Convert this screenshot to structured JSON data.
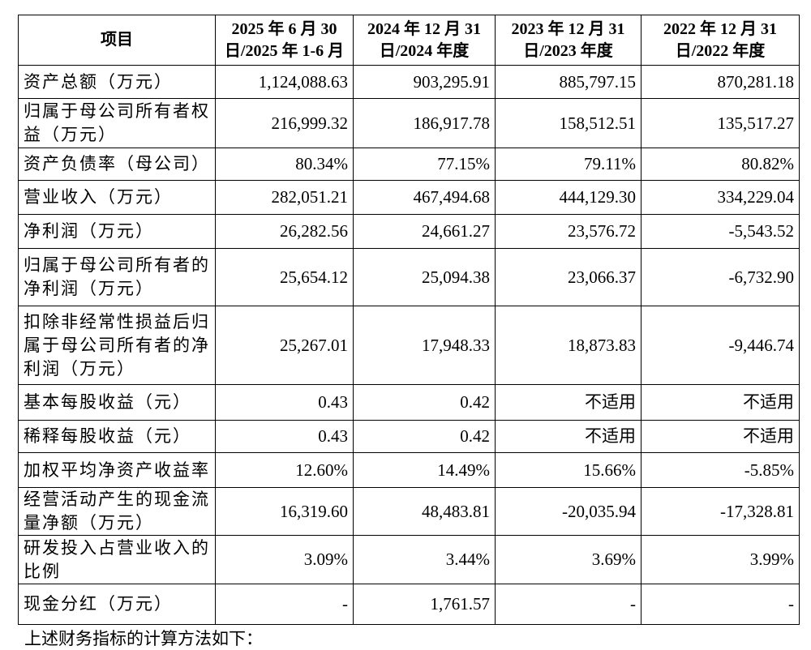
{
  "table": {
    "header": [
      [
        "项目"
      ],
      [
        "2025 年 6 月 30",
        "日/2025 年 1-6 月"
      ],
      [
        "2024 年 12 月 31",
        "日/2024 年度"
      ],
      [
        "2023 年 12 月 31",
        "日/2023 年度"
      ],
      [
        "2022 年 12 月 31",
        "日/2022 年度"
      ]
    ],
    "rows": [
      [
        "资产总额（万元）",
        "1,124,088.63",
        "903,295.91",
        "885,797.15",
        "870,281.18"
      ],
      [
        "归属于母公司所有者权益（万元）",
        "216,999.32",
        "186,917.78",
        "158,512.51",
        "135,517.27"
      ],
      [
        "资产负债率（母公司）",
        "80.34%",
        "77.15%",
        "79.11%",
        "80.82%"
      ],
      [
        "营业收入（万元）",
        "282,051.21",
        "467,494.68",
        "444,129.30",
        "334,229.04"
      ],
      [
        "净利润（万元）",
        "26,282.56",
        "24,661.27",
        "23,576.72",
        "-5,543.52"
      ],
      [
        "归属于母公司所有者的净利润（万元）",
        "25,654.12",
        "25,094.38",
        "23,066.37",
        "-6,732.90"
      ],
      [
        "扣除非经常性损益后归属于母公司所有者的净利润（万元）",
        "25,267.01",
        "17,948.33",
        "18,873.83",
        "-9,446.74"
      ],
      [
        "基本每股收益（元）",
        "0.43",
        "0.42",
        "不适用",
        "不适用"
      ],
      [
        "稀释每股收益（元）",
        "0.43",
        "0.42",
        "不适用",
        "不适用"
      ],
      [
        "加权平均净资产收益率",
        "12.60%",
        "14.49%",
        "15.66%",
        "-5.85%"
      ],
      [
        "经营活动产生的现金流量净额（万元）",
        "16,319.60",
        "48,483.81",
        "-20,035.94",
        "-17,328.81"
      ],
      [
        "研发投入占营业收入的比例",
        "3.09%",
        "3.44%",
        "3.69%",
        "3.99%"
      ],
      [
        "现金分红（万元）",
        "-",
        "1,761.57",
        "-",
        "-"
      ]
    ]
  },
  "footer": {
    "note": "上述财务指标的计算方法如下："
  }
}
